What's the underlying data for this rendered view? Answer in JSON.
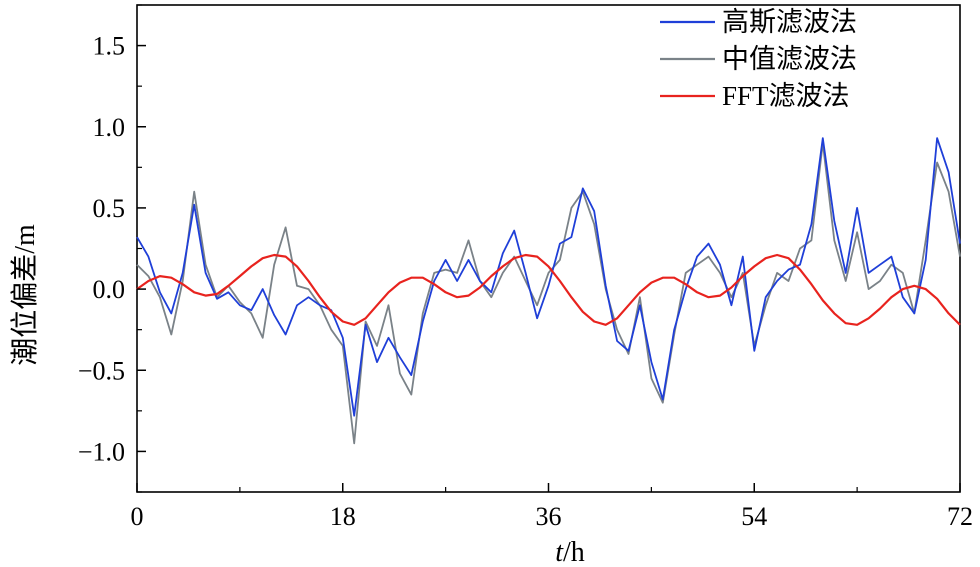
{
  "chart_data": {
    "type": "line",
    "title": "",
    "xlabel_italic": "t",
    "xlabel_unit": "/h",
    "ylabel": "潮位偏差/m",
    "xlim": [
      0,
      72
    ],
    "ylim": [
      -1.25,
      1.75
    ],
    "x_ticks": [
      0,
      18,
      36,
      54,
      72
    ],
    "x_tick_labels": [
      "0",
      "18",
      "36",
      "54",
      "72"
    ],
    "y_ticks": [
      -1.0,
      -0.5,
      0.0,
      0.5,
      1.0,
      1.5
    ],
    "y_tick_labels": [
      "−1.0",
      "−0.5",
      "0.0",
      "0.5",
      "1.0",
      "1.5"
    ],
    "grid": false,
    "legend_position": "top-right",
    "series": [
      {
        "name": "高斯滤波法",
        "color": "#1f3fd8",
        "x": [
          0,
          1,
          2,
          3,
          4,
          5,
          6,
          7,
          8,
          9,
          10,
          11,
          12,
          13,
          14,
          15,
          16,
          17,
          18,
          19,
          20,
          21,
          22,
          23,
          24,
          25,
          26,
          27,
          28,
          29,
          30,
          31,
          32,
          33,
          34,
          35,
          36,
          37,
          38,
          39,
          40,
          41,
          42,
          43,
          44,
          45,
          46,
          47,
          48,
          49,
          50,
          51,
          52,
          53,
          54,
          55,
          56,
          57,
          58,
          59,
          60,
          61,
          62,
          63,
          64,
          65,
          66,
          67,
          68,
          69,
          70,
          71,
          72
        ],
        "y": [
          0.32,
          0.2,
          -0.02,
          -0.15,
          0.1,
          0.52,
          0.1,
          -0.06,
          -0.02,
          -0.1,
          -0.13,
          0.0,
          -0.16,
          -0.28,
          -0.1,
          -0.05,
          -0.1,
          -0.13,
          -0.3,
          -0.78,
          -0.22,
          -0.45,
          -0.3,
          -0.42,
          -0.53,
          -0.2,
          0.05,
          0.18,
          0.05,
          0.18,
          0.05,
          -0.02,
          0.22,
          0.36,
          0.1,
          -0.18,
          0.02,
          0.28,
          0.32,
          0.62,
          0.48,
          0.02,
          -0.32,
          -0.38,
          -0.1,
          -0.45,
          -0.68,
          -0.25,
          0.0,
          0.2,
          0.28,
          0.15,
          -0.1,
          0.2,
          -0.38,
          -0.05,
          0.05,
          0.12,
          0.15,
          0.4,
          0.93,
          0.42,
          0.1,
          0.5,
          0.1,
          0.15,
          0.2,
          -0.05,
          -0.15,
          0.18,
          0.93,
          0.72,
          0.28
        ],
        "name_on_legend": true
      },
      {
        "name": "中值滤波法",
        "color": "#7a8288",
        "x": [
          0,
          1,
          2,
          3,
          4,
          5,
          6,
          7,
          8,
          9,
          10,
          11,
          12,
          13,
          14,
          15,
          16,
          17,
          18,
          19,
          20,
          21,
          22,
          23,
          24,
          25,
          26,
          27,
          28,
          29,
          30,
          31,
          32,
          33,
          34,
          35,
          36,
          37,
          38,
          39,
          40,
          41,
          42,
          43,
          44,
          45,
          46,
          47,
          48,
          49,
          50,
          51,
          52,
          53,
          54,
          55,
          56,
          57,
          58,
          59,
          60,
          61,
          62,
          63,
          64,
          65,
          66,
          67,
          68,
          69,
          70,
          71,
          72
        ],
        "y": [
          0.15,
          0.08,
          -0.05,
          -0.28,
          0.05,
          0.6,
          0.15,
          -0.05,
          0.02,
          -0.08,
          -0.15,
          -0.3,
          0.15,
          0.38,
          0.02,
          0.0,
          -0.1,
          -0.25,
          -0.35,
          -0.95,
          -0.2,
          -0.35,
          -0.1,
          -0.52,
          -0.65,
          -0.15,
          0.1,
          0.12,
          0.1,
          0.3,
          0.05,
          -0.05,
          0.1,
          0.2,
          0.05,
          -0.1,
          0.1,
          0.18,
          0.5,
          0.6,
          0.4,
          0.0,
          -0.25,
          -0.4,
          -0.05,
          -0.55,
          -0.7,
          -0.28,
          0.1,
          0.15,
          0.2,
          0.1,
          -0.05,
          0.1,
          -0.35,
          -0.1,
          0.1,
          0.05,
          0.25,
          0.3,
          0.9,
          0.3,
          0.05,
          0.35,
          0.0,
          0.05,
          0.15,
          0.1,
          -0.15,
          0.3,
          0.78,
          0.6,
          0.2
        ]
      },
      {
        "name": "FFT滤波法",
        "color": "#e8231e",
        "x": [
          0,
          1,
          2,
          3,
          4,
          5,
          6,
          7,
          8,
          9,
          10,
          11,
          12,
          13,
          14,
          15,
          16,
          17,
          18,
          19,
          20,
          21,
          22,
          23,
          24,
          25,
          26,
          27,
          28,
          29,
          30,
          31,
          32,
          33,
          34,
          35,
          36,
          37,
          38,
          39,
          40,
          41,
          42,
          43,
          44,
          45,
          46,
          47,
          48,
          49,
          50,
          51,
          52,
          53,
          54,
          55,
          56,
          57,
          58,
          59,
          60,
          61,
          62,
          63,
          64,
          65,
          66,
          67,
          68,
          69,
          70,
          71,
          72
        ],
        "y": [
          0.0,
          0.05,
          0.08,
          0.07,
          0.03,
          -0.02,
          -0.04,
          -0.03,
          0.02,
          0.08,
          0.14,
          0.19,
          0.21,
          0.2,
          0.14,
          0.05,
          -0.05,
          -0.14,
          -0.2,
          -0.22,
          -0.18,
          -0.1,
          -0.02,
          0.04,
          0.07,
          0.07,
          0.03,
          -0.02,
          -0.05,
          -0.04,
          0.01,
          0.08,
          0.14,
          0.19,
          0.21,
          0.2,
          0.14,
          0.05,
          -0.05,
          -0.14,
          -0.2,
          -0.22,
          -0.18,
          -0.1,
          -0.02,
          0.04,
          0.07,
          0.07,
          0.03,
          -0.02,
          -0.05,
          -0.04,
          0.01,
          0.08,
          0.14,
          0.19,
          0.21,
          0.19,
          0.12,
          0.03,
          -0.07,
          -0.15,
          -0.21,
          -0.22,
          -0.18,
          -0.12,
          -0.05,
          0.0,
          0.02,
          0.0,
          -0.06,
          -0.15,
          -0.22
        ]
      }
    ]
  }
}
